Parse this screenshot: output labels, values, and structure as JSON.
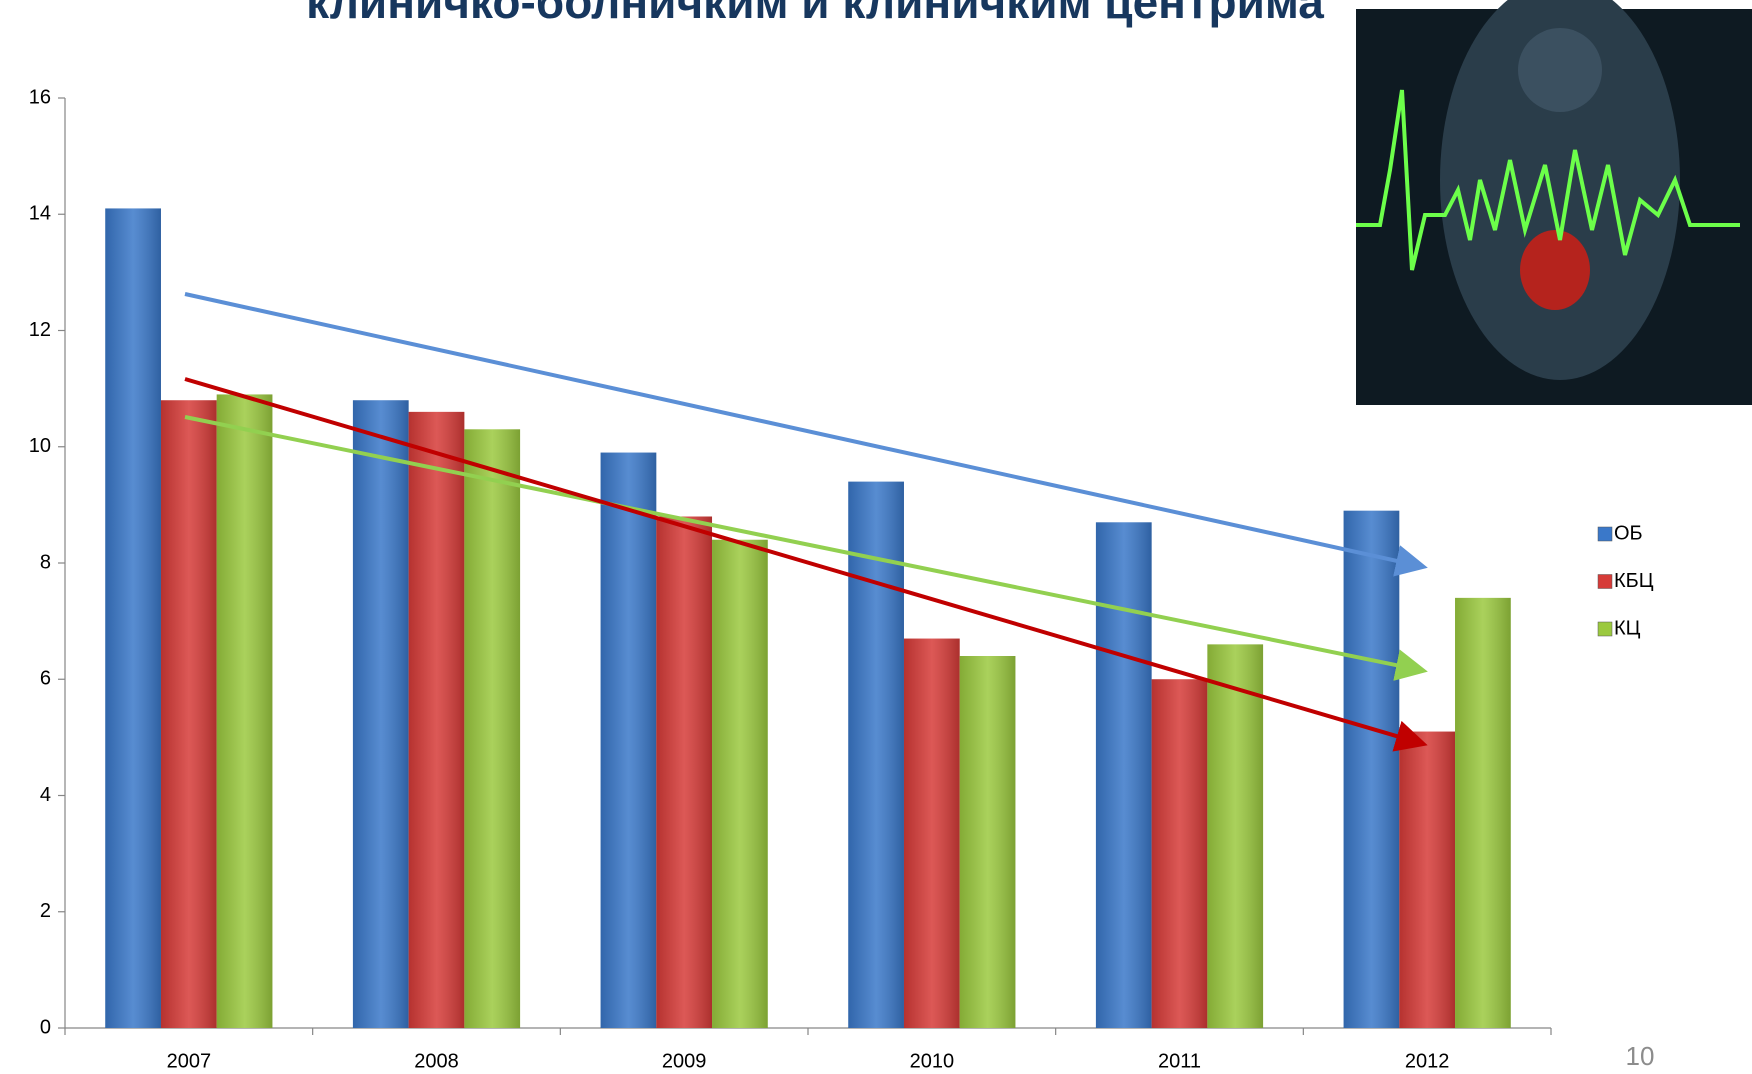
{
  "chart_data": {
    "type": "bar",
    "title": "клиничко-болничким и клиничким центрима",
    "page_number": "10",
    "categories": [
      "2007",
      "2008",
      "2009",
      "2010",
      "2011",
      "2012"
    ],
    "series": [
      {
        "name": "ОБ",
        "color": "#3a78c9",
        "values": [
          14.1,
          10.8,
          9.9,
          9.4,
          8.7,
          8.9
        ]
      },
      {
        "name": "КБЦ",
        "color": "#d63b38",
        "values": [
          10.8,
          10.6,
          8.8,
          6.7,
          6.0,
          5.1
        ]
      },
      {
        "name": "КЦ",
        "color": "#9bc93f",
        "values": [
          10.9,
          10.3,
          8.4,
          6.4,
          6.6,
          7.4
        ]
      }
    ],
    "ylim": [
      0,
      16
    ],
    "yticks": [
      0,
      2,
      4,
      6,
      8,
      10,
      12,
      14,
      16
    ],
    "grid": false
  }
}
